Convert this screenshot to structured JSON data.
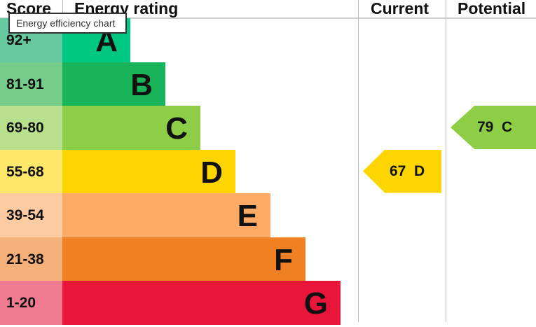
{
  "chart_data": {
    "type": "table",
    "title": "",
    "headers": [
      "Score",
      "Energy rating",
      "Current",
      "Potential"
    ],
    "bands": [
      {
        "letter": "A",
        "range": "92+",
        "color": "#00c781",
        "score_color": "#66c9a0"
      },
      {
        "letter": "B",
        "range": "81-91",
        "color": "#19b459",
        "score_color": "#75cc8a"
      },
      {
        "letter": "C",
        "range": "69-80",
        "color": "#8dce46",
        "score_color": "#b9e08c"
      },
      {
        "letter": "D",
        "range": "55-68",
        "color": "#ffd500",
        "score_color": "#ffe76a"
      },
      {
        "letter": "E",
        "range": "39-54",
        "color": "#fcaa65",
        "score_color": "#fdcba2"
      },
      {
        "letter": "F",
        "range": "21-38",
        "color": "#ef8023",
        "score_color": "#f5b07a"
      },
      {
        "letter": "G",
        "range": "1-20",
        "color": "#e9153b",
        "score_color": "#f07a90"
      }
    ],
    "current": {
      "value": 67,
      "letter": "D",
      "label": "67  D",
      "color": "#ffd500"
    },
    "potential": {
      "value": 79,
      "letter": "C",
      "label": "79  C",
      "color": "#8dce46"
    }
  },
  "tooltip": "Energy efficiency chart"
}
